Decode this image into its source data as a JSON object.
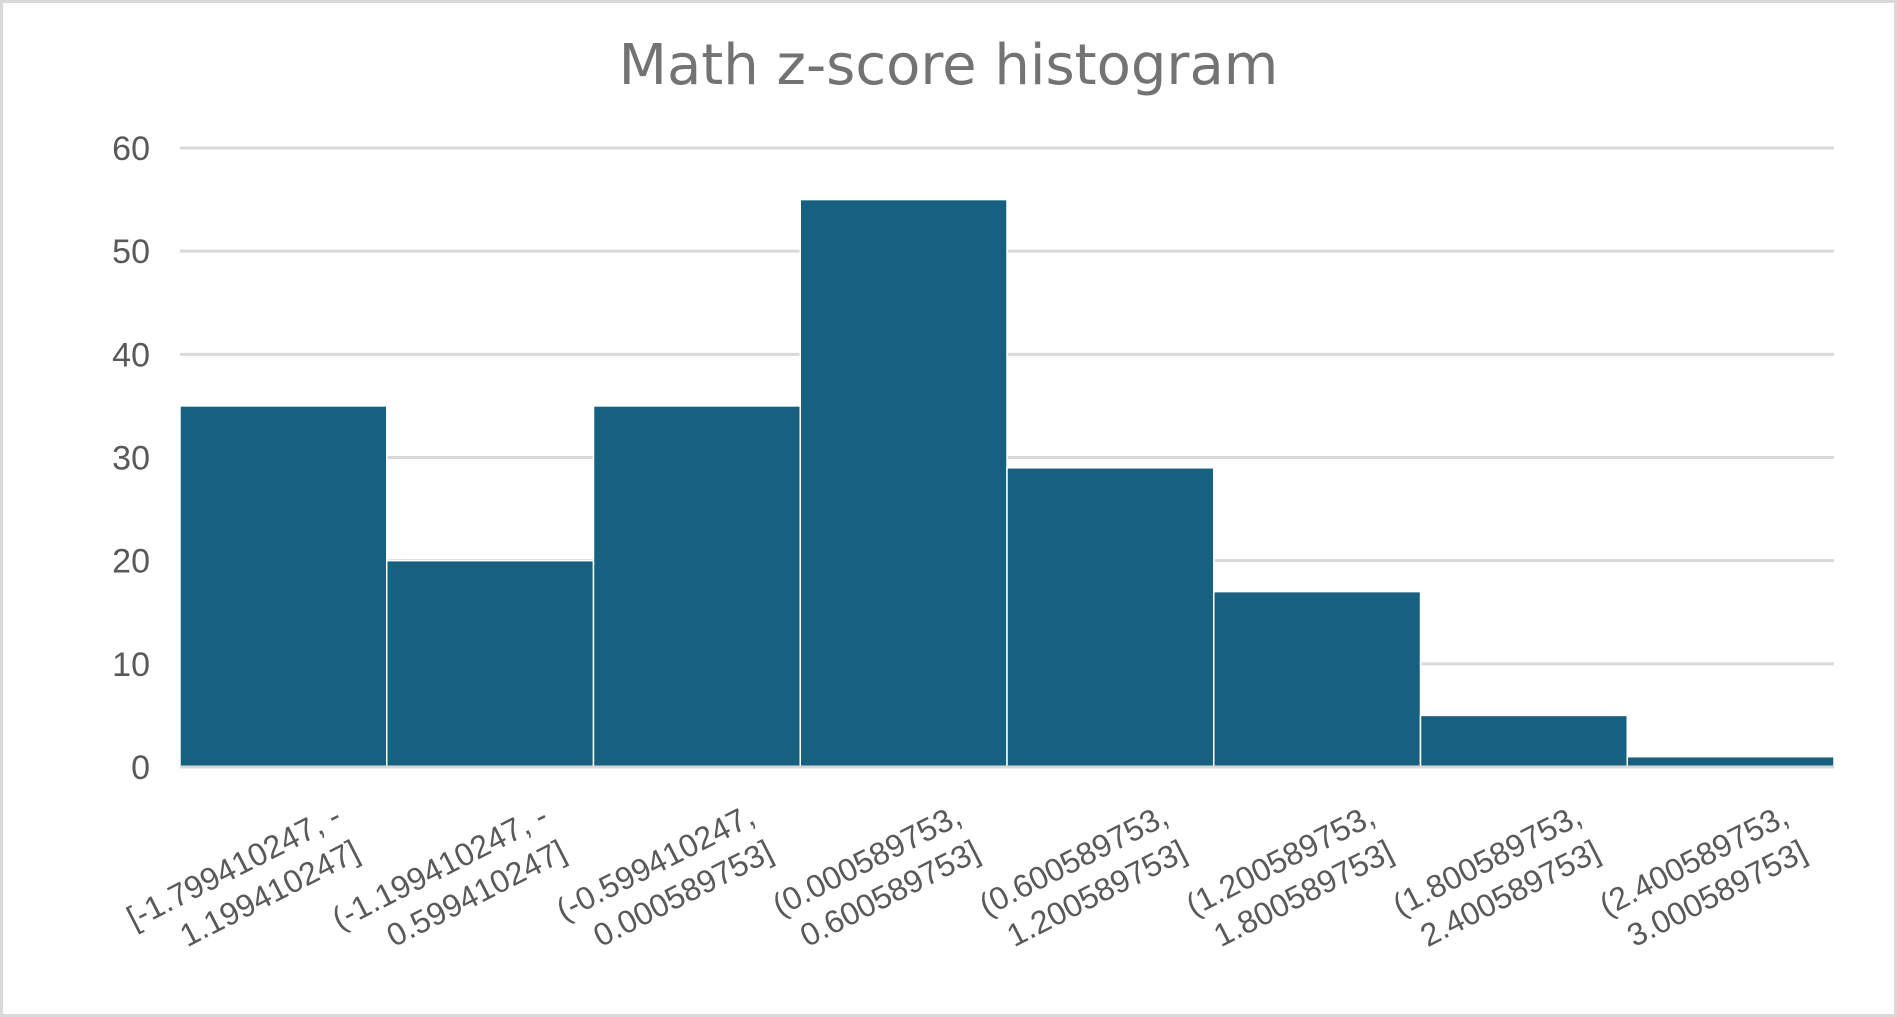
{
  "chart_data": {
    "type": "bar",
    "title": "Math z-score histogram",
    "xlabel": "",
    "ylabel": "",
    "categories": [
      [
        "[-1.799410247, -",
        "1.199410247]"
      ],
      [
        "(-1.199410247, -",
        "0.599410247]"
      ],
      [
        "(-0.599410247,",
        "0.000589753]"
      ],
      [
        "(0.000589753,",
        "0.600589753]"
      ],
      [
        "(0.600589753,",
        "1.200589753]"
      ],
      [
        "(1.200589753,",
        "1.800589753]"
      ],
      [
        "(1.800589753,",
        "2.400589753]"
      ],
      [
        "(2.400589753,",
        "3.000589753]"
      ]
    ],
    "values": [
      35,
      20,
      35,
      55,
      29,
      17,
      5,
      1
    ],
    "ylim": [
      0,
      60
    ],
    "yticks": [
      0,
      10,
      20,
      30,
      40,
      50,
      60
    ],
    "grid": true,
    "bar_color": "#17607f",
    "grid_color": "#d9d9d9"
  }
}
